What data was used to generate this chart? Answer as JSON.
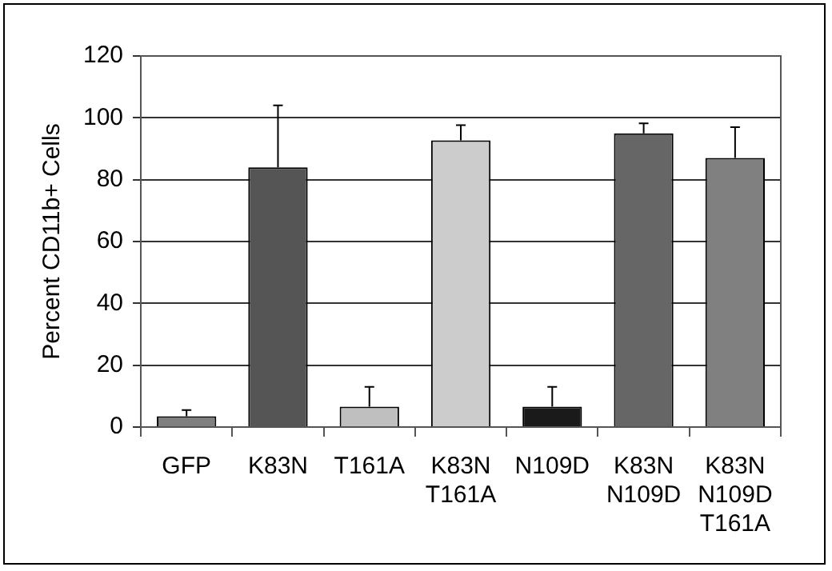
{
  "chart_data": {
    "type": "bar",
    "ylabel": "Percent CD11b+ Cells",
    "categories": [
      "GFP",
      "K83N",
      "T161A",
      "K83N T161A",
      "N109D",
      "K83N N109D",
      "K83N N109D T161A"
    ],
    "values": [
      3.5,
      84,
      6.6,
      92.7,
      6.6,
      95,
      87
    ],
    "errors": [
      [
        3.5,
        5.5
      ],
      [
        84,
        104
      ],
      [
        6.6,
        13
      ],
      [
        92.7,
        97.6
      ],
      [
        6.6,
        13
      ],
      [
        95,
        98.2
      ],
      [
        87,
        97
      ]
    ],
    "colors": [
      "#7f7f7f",
      "#555555",
      "#bfbfbf",
      "#cccccc",
      "#1a1a1a",
      "#666666",
      "#808080"
    ],
    "ylim": [
      0,
      120
    ],
    "yticks": [
      0,
      20,
      40,
      60,
      80,
      100,
      120
    ],
    "grid": "y"
  }
}
